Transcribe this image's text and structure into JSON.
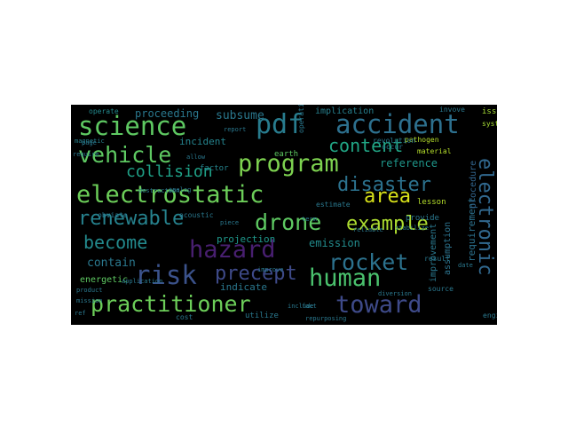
{
  "word_cloud": {
    "background": "#000000",
    "words": [
      {
        "text": "electrostatic",
        "color": "#6cce59"
      },
      {
        "text": "program",
        "color": "#7dd250"
      },
      {
        "text": "hazard",
        "color": "#481f70"
      },
      {
        "text": "drone",
        "color": "#5ec962"
      },
      {
        "text": "rocket",
        "color": "#2c728e"
      },
      {
        "text": "accident",
        "color": "#2d708e"
      },
      {
        "text": "pdf",
        "color": "#287c8e"
      },
      {
        "text": "science",
        "color": "#5ec962"
      },
      {
        "text": "vehicle",
        "color": "#5ec962"
      },
      {
        "text": "human",
        "color": "#4ac16d"
      },
      {
        "text": "risk",
        "color": "#3b528b"
      },
      {
        "text": "practitioner",
        "color": "#6cce59"
      },
      {
        "text": "toward",
        "color": "#3e4a89"
      },
      {
        "text": "electronic",
        "color": "#31688e"
      },
      {
        "text": "disaster",
        "color": "#2c728e"
      },
      {
        "text": "renewable",
        "color": "#26828e"
      },
      {
        "text": "example",
        "color": "#addc30"
      },
      {
        "text": "area",
        "color": "#d8e219"
      },
      {
        "text": "content",
        "color": "#21a685"
      },
      {
        "text": "precept",
        "color": "#3e4a89"
      },
      {
        "text": "collision",
        "color": "#1fa187"
      },
      {
        "text": "become",
        "color": "#238a8d"
      },
      {
        "text": "emission",
        "color": "#228c8d"
      },
      {
        "text": "reference",
        "color": "#1f978b"
      },
      {
        "text": "subsume",
        "color": "#2a788e"
      },
      {
        "text": "proceeding",
        "color": "#2a788e"
      },
      {
        "text": "implication",
        "color": "#27808e"
      },
      {
        "text": "incident",
        "color": "#25848e"
      },
      {
        "text": "contain",
        "color": "#2a788e"
      },
      {
        "text": "projection",
        "color": "#1f988b"
      },
      {
        "text": "indicate",
        "color": "#2a788e"
      },
      {
        "text": "improvement",
        "color": "#2a788e"
      },
      {
        "text": "requirement",
        "color": "#2c728e"
      },
      {
        "text": "procedure",
        "color": "#32658e"
      },
      {
        "text": "assumption",
        "color": "#2c738e"
      },
      {
        "text": "energetic",
        "color": "#5ec962"
      },
      {
        "text": "lesson",
        "color": "#b5de2b"
      },
      {
        "text": "pathogen",
        "color": "#b5de2b"
      },
      {
        "text": "magnetic",
        "color": "#26828e"
      },
      {
        "text": "earth",
        "color": "#5ec962"
      },
      {
        "text": "factor",
        "color": "#25858e"
      },
      {
        "text": "issue",
        "color": "#a5db36"
      },
      {
        "text": "system",
        "color": "#a5db36"
      },
      {
        "text": "material",
        "color": "#b5de2b"
      },
      {
        "text": "revolution",
        "color": "#2a788e"
      },
      {
        "text": "operate",
        "color": "#238a8d"
      },
      {
        "text": "invove",
        "color": "#2a788e"
      },
      {
        "text": "occur",
        "color": "#2a788e"
      },
      {
        "text": "provide",
        "color": "#2a788e"
      },
      {
        "text": "estimate",
        "color": "#2a788e"
      },
      {
        "text": "acoustic",
        "color": "#2a788e"
      },
      {
        "text": "obviate",
        "color": "#2a788e"
      },
      {
        "text": "source",
        "color": "#2a788e"
      },
      {
        "text": "result",
        "color": "#2a788e"
      },
      {
        "text": "date",
        "color": "#2a788e"
      },
      {
        "text": "engine",
        "color": "#2a788e"
      },
      {
        "text": "cost",
        "color": "#2a788e"
      },
      {
        "text": "ref",
        "color": "#2a788e"
      },
      {
        "text": "mission",
        "color": "#2a788e"
      },
      {
        "text": "utilize",
        "color": "#2a788e"
      },
      {
        "text": "report",
        "color": "#2a788e"
      },
      {
        "text": "allow",
        "color": "#2a788e"
      },
      {
        "text": "require",
        "color": "#2a788e"
      },
      {
        "text": "page",
        "color": "#2a788e"
      },
      {
        "text": "improve",
        "color": "#2a788e"
      },
      {
        "text": "application",
        "color": "#2a788e"
      },
      {
        "text": "product",
        "color": "#2a788e"
      },
      {
        "text": "include",
        "color": "#2a788e"
      },
      {
        "text": "fact",
        "color": "#2a788e"
      },
      {
        "text": "piece",
        "color": "#2a788e"
      },
      {
        "text": "analog",
        "color": "#2a788e"
      },
      {
        "text": "destruction",
        "color": "#2a788e"
      },
      {
        "text": "repurposing",
        "color": "#2a788e"
      },
      {
        "text": "operation",
        "color": "#2a788e"
      },
      {
        "text": "term",
        "color": "#2a788e"
      },
      {
        "text": "stabilize",
        "color": "#2a788e"
      },
      {
        "text": "reliable",
        "color": "#2a788e"
      },
      {
        "text": "diversion",
        "color": "#2a788e"
      }
    ]
  }
}
